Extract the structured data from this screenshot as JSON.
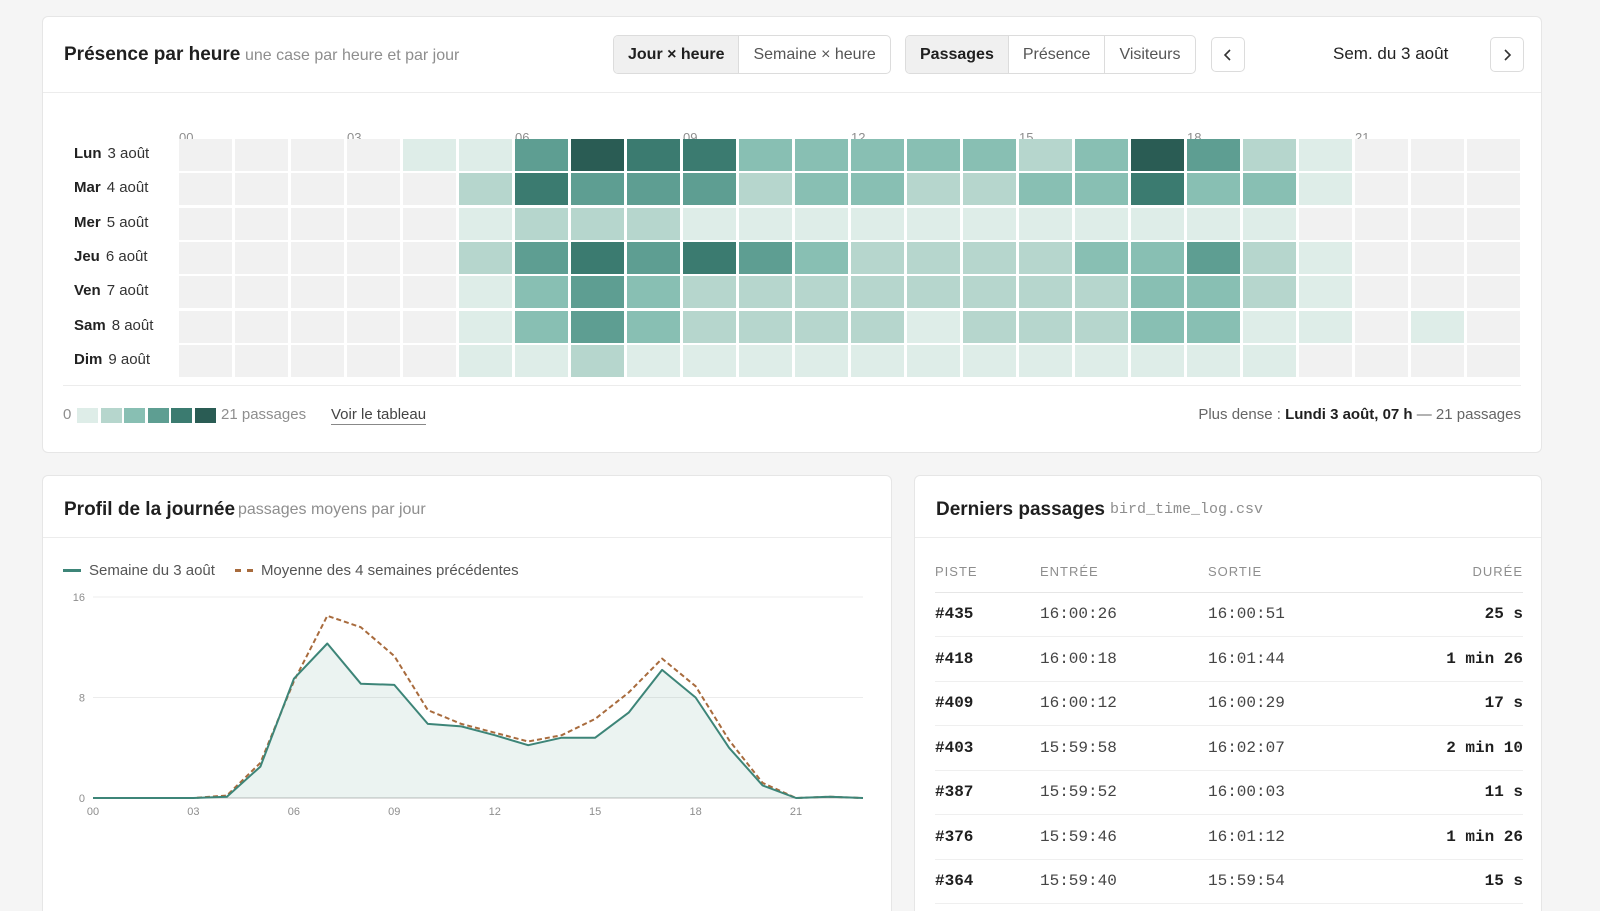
{
  "heatmap_card": {
    "title": "Présence par heure",
    "subtitle": "une case par heure et par jour",
    "view_toggle": [
      {
        "label": "Jour × heure",
        "active": true
      },
      {
        "label": "Semaine × heure",
        "active": false
      }
    ],
    "metric_toggle": [
      {
        "label": "Passages",
        "active": true
      },
      {
        "label": "Présence",
        "active": false
      },
      {
        "label": "Visiteurs",
        "active": false
      }
    ],
    "week_label": "Sem. du 3 août",
    "hour_labels": [
      "00",
      "03",
      "06",
      "09",
      "12",
      "15",
      "18",
      "21"
    ],
    "days": [
      {
        "day": "Lun",
        "date": "3 août",
        "levels": [
          0,
          0,
          0,
          0,
          1,
          1,
          4,
          6,
          5,
          5,
          3,
          3,
          3,
          3,
          3,
          2,
          3,
          6,
          4,
          2,
          1,
          0,
          0,
          0
        ]
      },
      {
        "day": "Mar",
        "date": "4 août",
        "levels": [
          0,
          0,
          0,
          0,
          0,
          2,
          5,
          4,
          4,
          4,
          2,
          3,
          3,
          2,
          2,
          3,
          3,
          5,
          3,
          3,
          1,
          0,
          0,
          0
        ]
      },
      {
        "day": "Mer",
        "date": "5 août",
        "levels": [
          0,
          0,
          0,
          0,
          0,
          1,
          2,
          2,
          2,
          1,
          1,
          1,
          1,
          1,
          1,
          1,
          1,
          1,
          1,
          1,
          0,
          0,
          0,
          0
        ]
      },
      {
        "day": "Jeu",
        "date": "6 août",
        "levels": [
          0,
          0,
          0,
          0,
          0,
          2,
          4,
          5,
          4,
          5,
          4,
          3,
          2,
          2,
          2,
          2,
          3,
          3,
          4,
          2,
          1,
          0,
          0,
          0
        ]
      },
      {
        "day": "Ven",
        "date": "7 août",
        "levels": [
          0,
          0,
          0,
          0,
          0,
          1,
          3,
          4,
          3,
          2,
          2,
          2,
          2,
          2,
          2,
          2,
          2,
          3,
          3,
          2,
          1,
          0,
          0,
          0
        ]
      },
      {
        "day": "Sam",
        "date": "8 août",
        "levels": [
          0,
          0,
          0,
          0,
          0,
          1,
          3,
          4,
          3,
          2,
          2,
          2,
          2,
          1,
          2,
          2,
          2,
          3,
          3,
          1,
          1,
          0,
          1,
          0
        ]
      },
      {
        "day": "Dim",
        "date": "9 août",
        "levels": [
          0,
          0,
          0,
          0,
          0,
          1,
          1,
          2,
          1,
          1,
          1,
          1,
          1,
          1,
          1,
          1,
          1,
          1,
          1,
          1,
          0,
          0,
          0,
          0
        ]
      }
    ],
    "scale_colors": [
      "#f1f1f1",
      "#deede8",
      "#b6d6cd",
      "#88bfb3",
      "#5e9e92",
      "#3b7b70",
      "#2a5c54"
    ],
    "legend_min": "0",
    "legend_max": "21 passages",
    "view_table_link": "Voir le tableau",
    "densest_prefix": "Plus dense :",
    "densest_value": "Lundi 3 août, 07 h",
    "densest_suffix": "— 21 passages"
  },
  "profile_card": {
    "title": "Profil de la journée",
    "subtitle": "passages moyens par jour",
    "legend_current": "Semaine du 3 août",
    "legend_average": "Moyenne des 4 semaines précédentes"
  },
  "chart_data": {
    "type": "line",
    "title": "Profil de la journée",
    "x": [
      0,
      1,
      2,
      3,
      4,
      5,
      6,
      7,
      8,
      9,
      10,
      11,
      12,
      13,
      14,
      15,
      16,
      17,
      18,
      19,
      20,
      21,
      22,
      23
    ],
    "x_tick_labels": [
      "00",
      "03",
      "06",
      "09",
      "12",
      "15",
      "18",
      "21"
    ],
    "xlim": [
      0,
      23
    ],
    "ylim": [
      0,
      16
    ],
    "y_ticks": [
      0,
      8,
      16
    ],
    "grid": true,
    "series": [
      {
        "name": "Semaine du 3 août",
        "color": "#3d8578",
        "style": "solid",
        "fill": true,
        "values": [
          0,
          0,
          0,
          0,
          0.1,
          2.5,
          9.5,
          12.3,
          9.1,
          9.0,
          5.9,
          5.7,
          5.0,
          4.2,
          4.8,
          4.8,
          6.8,
          10.2,
          8.0,
          4.0,
          1.0,
          0,
          0.1,
          0
        ]
      },
      {
        "name": "Moyenne des 4 semaines précédentes",
        "color": "#a86b3d",
        "style": "dashed",
        "fill": false,
        "values": [
          0,
          0,
          0,
          0,
          0.2,
          2.8,
          9.3,
          14.5,
          13.6,
          11.3,
          7.0,
          5.9,
          5.2,
          4.5,
          5.0,
          6.3,
          8.4,
          11.1,
          8.9,
          4.6,
          1.2,
          0,
          0.1,
          0
        ]
      }
    ]
  },
  "log_card": {
    "title": "Derniers passages",
    "file": "bird_time_log.csv",
    "columns": {
      "track": "PISTE",
      "entry": "ENTRÉE",
      "exit": "SORTIE",
      "duration": "DURÉE"
    },
    "rows": [
      {
        "track": "#435",
        "entry": "16:00:26",
        "exit": "16:00:51",
        "duration": "25 s"
      },
      {
        "track": "#418",
        "entry": "16:00:18",
        "exit": "16:01:44",
        "duration": "1 min 26"
      },
      {
        "track": "#409",
        "entry": "16:00:12",
        "exit": "16:00:29",
        "duration": "17 s"
      },
      {
        "track": "#403",
        "entry": "15:59:58",
        "exit": "16:02:07",
        "duration": "2 min 10"
      },
      {
        "track": "#387",
        "entry": "15:59:52",
        "exit": "16:00:03",
        "duration": "11 s"
      },
      {
        "track": "#376",
        "entry": "15:59:46",
        "exit": "16:01:12",
        "duration": "1 min 26"
      },
      {
        "track": "#364",
        "entry": "15:59:40",
        "exit": "15:59:54",
        "duration": "15 s"
      }
    ]
  }
}
